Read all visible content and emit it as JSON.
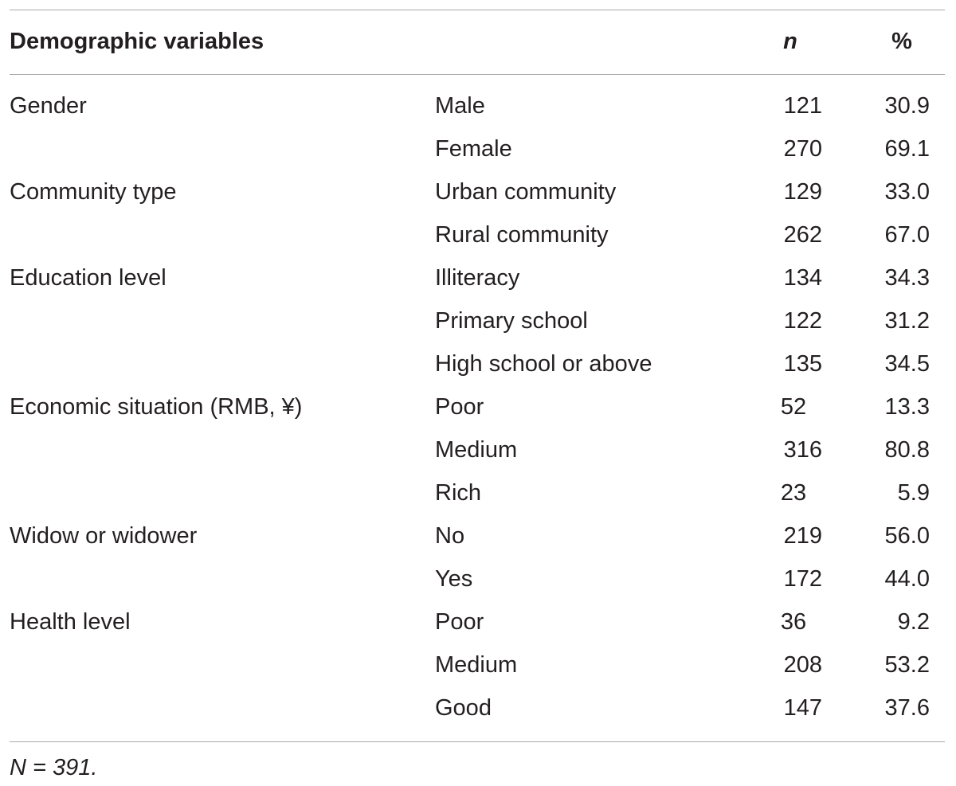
{
  "table": {
    "headers": {
      "variable": "Demographic variables",
      "n": "n",
      "percent": "%"
    },
    "rows": [
      {
        "variable": "Gender",
        "level": "Male",
        "n": "121",
        "percent": "30.9"
      },
      {
        "variable": "",
        "level": "Female",
        "n": "270",
        "percent": "69.1"
      },
      {
        "variable": "Community type",
        "level": "Urban community",
        "n": "129",
        "percent": "33.0"
      },
      {
        "variable": "",
        "level": "Rural community",
        "n": "262",
        "percent": "67.0"
      },
      {
        "variable": "Education level",
        "level": "Illiteracy",
        "n": "134",
        "percent": "34.3"
      },
      {
        "variable": "",
        "level": "Primary school",
        "n": "122",
        "percent": "31.2"
      },
      {
        "variable": "",
        "level": "High school or above",
        "n": "135",
        "percent": "34.5"
      },
      {
        "variable": "Economic situation (RMB, ¥)",
        "level": "Poor",
        "n": "52",
        "percent": "13.3"
      },
      {
        "variable": "",
        "level": "Medium",
        "n": "316",
        "percent": "80.8"
      },
      {
        "variable": "",
        "level": "Rich",
        "n": "23",
        "percent": "5.9"
      },
      {
        "variable": "Widow or widower",
        "level": "No",
        "n": "219",
        "percent": "56.0"
      },
      {
        "variable": "",
        "level": "Yes",
        "n": "172",
        "percent": "44.0"
      },
      {
        "variable": "Health level",
        "level": "Poor",
        "n": "36",
        "percent": "9.2"
      },
      {
        "variable": "",
        "level": "Medium",
        "n": "208",
        "percent": "53.2"
      },
      {
        "variable": "",
        "level": "Good",
        "n": "147",
        "percent": "37.6"
      }
    ]
  },
  "footnote": "N = 391."
}
